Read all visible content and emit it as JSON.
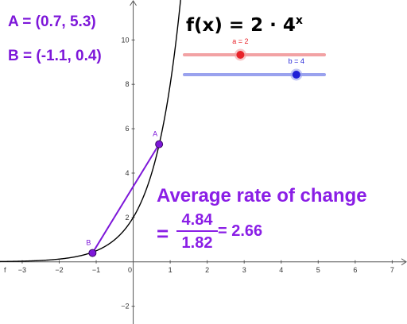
{
  "chart_data": {
    "type": "line",
    "title": "f(x) = 2 · 4",
    "title_exponent": "x",
    "xlim": [
      -3.6,
      7.4
    ],
    "ylim": [
      -2.8,
      11.8
    ],
    "x_ticks": [
      -3,
      -2,
      -1,
      0,
      1,
      2,
      3,
      4,
      5,
      6,
      7
    ],
    "y_ticks": [
      -2,
      2,
      4,
      6,
      8,
      10
    ],
    "x_axis_name": "f",
    "grid": false,
    "function": {
      "a": 2,
      "b": 4,
      "expression": "a * b^x"
    },
    "points": [
      {
        "name": "A",
        "x": 0.7,
        "y": 5.3
      },
      {
        "name": "B",
        "x": -1.1,
        "y": 0.4
      }
    ],
    "secant": {
      "from": "B",
      "to": "A"
    },
    "sliders": [
      {
        "name": "a",
        "label": "a = 2",
        "value": 2,
        "fraction": 0.4,
        "color": "#e8232a",
        "track_color": "#f2a2a4"
      },
      {
        "name": "b",
        "label": "b = 4",
        "value": 4,
        "fraction": 0.8,
        "color": "#1f1fd6",
        "track_color": "#9aa2ee"
      }
    ],
    "colors": {
      "curve": "#000000",
      "secant": "#7d17d9",
      "point": "#7d17d9",
      "axis": "#555555"
    }
  },
  "labels": {
    "point_a": "A = (0.7, 5.3)",
    "point_b": "B = (-1.1, 0.4)",
    "rate_title": "Average rate of change",
    "equals": "=",
    "numerator": "4.84",
    "denominator": "1.82",
    "result": "= 2.66"
  }
}
